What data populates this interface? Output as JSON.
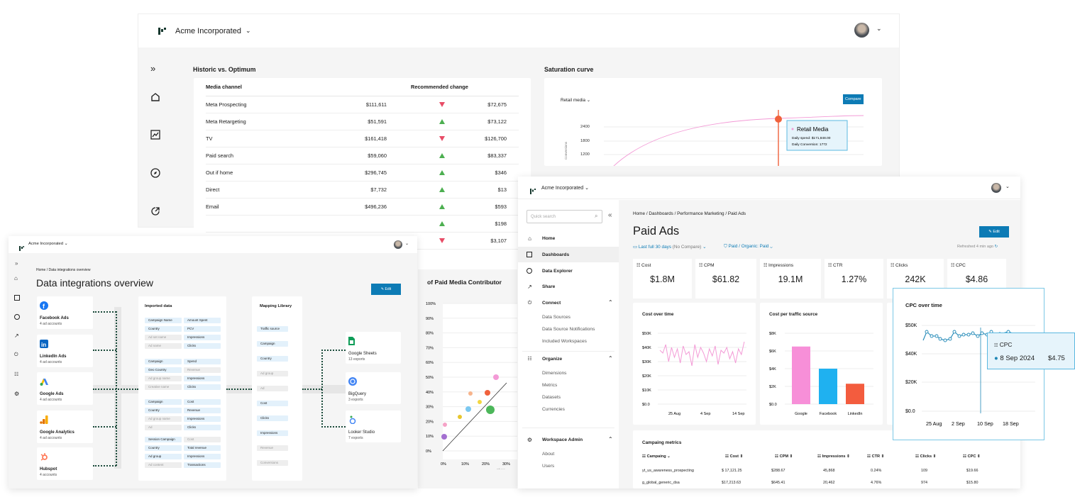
{
  "back_window": {
    "org": "Acme Incorporated",
    "hvo": {
      "title": "Historic vs. Optimum",
      "col_channel": "Media channel",
      "col_change": "Recommended change",
      "rows": [
        {
          "channel": "Meta Prospecting",
          "historic": "$111,611",
          "dir": "down",
          "optimum": "$72,675"
        },
        {
          "channel": "Meta Retargeting",
          "historic": "$51,591",
          "dir": "up",
          "optimum": "$73,122"
        },
        {
          "channel": "TV",
          "historic": "$161,418",
          "dir": "down",
          "optimum": "$126,700"
        },
        {
          "channel": "Paid search",
          "historic": "$59,060",
          "dir": "up",
          "optimum": "$83,337"
        },
        {
          "channel": "Out if home",
          "historic": "$296,745",
          "dir": "up",
          "optimum": "$346"
        },
        {
          "channel": "Direct",
          "historic": "$7,732",
          "dir": "up",
          "optimum": "$13"
        },
        {
          "channel": "Email",
          "historic": "$496,236",
          "dir": "up",
          "optimum": "$593"
        },
        {
          "channel": "",
          "historic": "",
          "dir": "up",
          "optimum": "$198"
        },
        {
          "channel": "",
          "historic": "",
          "dir": "down",
          "optimum": "$3,107"
        }
      ]
    },
    "saturation": {
      "title": "Saturation curve",
      "dropdown": "Retail media",
      "compare": "Compare",
      "yticks": [
        "2400",
        "1800",
        "1200"
      ],
      "ylabel": "Conversions",
      "tooltip_title": "Retail Media",
      "tooltip_spend": "Daily spend: $171,848.00",
      "tooltip_conv": "Daily Conversion: 1772",
      "colors": {
        "curve": "#f39ad6",
        "marker": "#f0613c",
        "button": "#0d7bb5"
      }
    },
    "contrib": {
      "title": "of Paid Media Contributor",
      "yticks": [
        "100%",
        "90%",
        "80%",
        "70%",
        "60%",
        "50%",
        "40%",
        "30%",
        "20%",
        "10%",
        "0%"
      ],
      "xticks": [
        "0%",
        "10%",
        "20%",
        "30%"
      ],
      "xlabel": "Share"
    }
  },
  "left_window": {
    "org": "Acme Incorporated",
    "breadcrumb": "Home / Data integrations overview",
    "title": "Data integrations overview",
    "edit": "Edit",
    "sources": [
      {
        "name": "Facebook Ads",
        "sub": "4 ad accounts",
        "icon": "facebook-icon"
      },
      {
        "name": "LinkedIn Ads",
        "sub": "4 ad accounts",
        "icon": "linkedin-icon"
      },
      {
        "name": "Google Ads",
        "sub": "4 ad accounts",
        "icon": "google-ads-icon"
      },
      {
        "name": "Google Analytics",
        "sub": "4 ad accounts",
        "icon": "google-analytics-icon"
      },
      {
        "name": "Hubspot",
        "sub": "4 accounts",
        "icon": "hubspot-icon"
      }
    ],
    "imported_title": "Imported data",
    "imported_groups": [
      [
        [
          "Campaign Name",
          "Amount Spent"
        ],
        [
          "Country",
          "PCV"
        ],
        [
          "Ad set name",
          "Impressions"
        ],
        [
          "Ad name",
          "Clicks"
        ]
      ],
      [
        [
          "Campaign",
          "Spend"
        ],
        [
          "Geo Country",
          "Revenue"
        ],
        [
          "Ad group name",
          "Impressions"
        ],
        [
          "Creative name",
          "Clicks"
        ]
      ],
      [
        [
          "Campaign",
          "Cost"
        ],
        [
          "Country",
          "Revenue"
        ],
        [
          "Ad group name",
          "Impressions"
        ],
        [
          "Ad",
          "Clicks"
        ]
      ],
      [
        [
          "Session Campaign",
          "Cost"
        ],
        [
          "Country",
          "Total revenue"
        ],
        [
          "Ad group",
          "Impressions"
        ],
        [
          "Ad content",
          "Transactions"
        ]
      ]
    ],
    "mapping_title": "Mapping Library",
    "mapping_items": [
      "Traffic source",
      "Campaign",
      "Country",
      "Ad group",
      "Ad",
      "Cost",
      "Clicks",
      "Impressions",
      "Revenue",
      "Conversions"
    ],
    "destinations": [
      {
        "name": "Google Sheets",
        "sub": "13 exports",
        "icon": "google-sheets-icon"
      },
      {
        "name": "BigQuery",
        "sub": "3 exports",
        "icon": "bigquery-icon"
      },
      {
        "name": "Looker Studio",
        "sub": "7 exports",
        "icon": "looker-studio-icon"
      }
    ]
  },
  "right_window": {
    "org": "Acme Incorporated",
    "search_placeholder": "Quick search",
    "nav": {
      "home": "Home",
      "dashboards": "Dashboards",
      "explorer": "Data Explorer",
      "share": "Share",
      "connect": "Connect",
      "connect_items": [
        "Data Sources",
        "Data Source Notifications",
        "Included Workspaces"
      ],
      "organize": "Organize",
      "organize_items": [
        "Dimensions",
        "Metrics",
        "Datasets",
        "Currencies"
      ],
      "admin": "Workspace Admin",
      "admin_items": [
        "About",
        "Users"
      ]
    },
    "breadcrumb": "Home / Dashboards / Performance Marketing / Paid Ads",
    "title": "Paid Ads",
    "edit": "Edit",
    "filter_date": "Last full 30 days",
    "filter_compare": "(No Compare)",
    "filter_paid": "Paid / Organic: Paid",
    "refreshed": "Refreshed 4 min ago",
    "metrics": [
      {
        "label": "Cost",
        "value": "$1.8M"
      },
      {
        "label": "CPM",
        "value": "$61.82"
      },
      {
        "label": "Impressions",
        "value": "19.1M"
      },
      {
        "label": "CTR",
        "value": "1.27%"
      },
      {
        "label": "Clicks",
        "value": "242K"
      },
      {
        "label": "CPC",
        "value": "$4.86"
      }
    ],
    "cost_chart": {
      "title": "Cost over time",
      "yticks": [
        "$50K",
        "$40K",
        "$30K",
        "$20K",
        "$10K",
        "$0.0"
      ],
      "xticks": [
        "25 Aug",
        "4 Sep",
        "14 Sep"
      ]
    },
    "traffic_chart": {
      "title": "Cost per traffic source",
      "yticks": [
        "$8K",
        "$6K",
        "$4K",
        "$2K",
        "$0.0"
      ],
      "categories": [
        "Google",
        "Facebook",
        "LinkedIn"
      ],
      "values": [
        6500,
        4000,
        2300
      ],
      "colors": [
        "#f78fd8",
        "#1fb1f0",
        "#f35c3e"
      ]
    },
    "table": {
      "title": "Campaing metrics",
      "headers": [
        "Campaing",
        "Cost",
        "CPM",
        "Impressions",
        "CTR",
        "Clicks",
        "CPC"
      ],
      "rows": [
        [
          "yt_us_awareness_prospecting",
          "$ 17,121.25",
          "$288.67",
          "45,868",
          "0.24%",
          "109",
          "$19.66"
        ],
        [
          "g_global_generic_dsa",
          "$17,213.63",
          "$645.41",
          "20,462",
          "4.76%",
          "974",
          "$15.80"
        ]
      ]
    }
  },
  "cpc_popup": {
    "title": "CPC over time",
    "yticks": [
      "$50K",
      "$40K",
      "$20K",
      "$0.0"
    ],
    "xticks": [
      "25 Aug",
      "2 Sep",
      "10 Sep",
      "18 Sep"
    ],
    "tooltip_label": "CPC",
    "tooltip_date": "8 Sep 2024",
    "tooltip_value": "$4.75",
    "accent": "#1e87b6"
  }
}
